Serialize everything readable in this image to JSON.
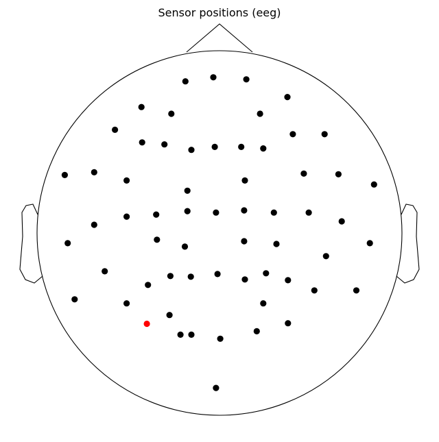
{
  "title": "Sensor positions (eeg)",
  "colors": {
    "outline": "#000000",
    "sensor": "#000000",
    "highlight": "#ff0000",
    "background": "#ffffff"
  },
  "chart_data": {
    "type": "scatter",
    "title": "Sensor positions (eeg)",
    "xlabel": "",
    "ylabel": "",
    "grid": false,
    "x_range": [
      -1,
      1
    ],
    "y_range": [
      -1,
      1
    ],
    "highlight_index": 60,
    "sensors": [
      {
        "x": -0.187,
        "y": 0.832
      },
      {
        "x": -0.034,
        "y": 0.854
      },
      {
        "x": 0.147,
        "y": 0.843
      },
      {
        "x": 0.372,
        "y": 0.746
      },
      {
        "x": -0.428,
        "y": 0.691
      },
      {
        "x": -0.264,
        "y": 0.654
      },
      {
        "x": 0.222,
        "y": 0.654
      },
      {
        "x": -0.573,
        "y": 0.566
      },
      {
        "x": 0.402,
        "y": 0.542
      },
      {
        "x": 0.576,
        "y": 0.542
      },
      {
        "x": -0.424,
        "y": 0.497
      },
      {
        "x": -0.302,
        "y": 0.486
      },
      {
        "x": -0.154,
        "y": 0.456
      },
      {
        "x": -0.026,
        "y": 0.472
      },
      {
        "x": 0.119,
        "y": 0.472
      },
      {
        "x": 0.24,
        "y": 0.464
      },
      {
        "x": -0.848,
        "y": 0.318
      },
      {
        "x": -0.687,
        "y": 0.333
      },
      {
        "x": -0.509,
        "y": 0.288
      },
      {
        "x": 0.139,
        "y": 0.288
      },
      {
        "x": 0.462,
        "y": 0.326
      },
      {
        "x": 0.652,
        "y": 0.322
      },
      {
        "x": 0.847,
        "y": 0.266
      },
      {
        "x": -0.176,
        "y": 0.232
      },
      {
        "x": -0.176,
        "y": 0.12
      },
      {
        "x": -0.509,
        "y": 0.09
      },
      {
        "x": -0.347,
        "y": 0.101
      },
      {
        "x": -0.019,
        "y": 0.112
      },
      {
        "x": 0.135,
        "y": 0.124
      },
      {
        "x": 0.298,
        "y": 0.112
      },
      {
        "x": 0.489,
        "y": 0.112
      },
      {
        "x": 0.67,
        "y": 0.064
      },
      {
        "x": -0.687,
        "y": 0.045
      },
      {
        "x": -0.832,
        "y": -0.056
      },
      {
        "x": -0.343,
        "y": -0.037
      },
      {
        "x": -0.19,
        "y": -0.075
      },
      {
        "x": 0.135,
        "y": -0.045
      },
      {
        "x": 0.312,
        "y": -0.06
      },
      {
        "x": 0.824,
        "y": -0.056
      },
      {
        "x": 0.584,
        "y": -0.127
      },
      {
        "x": -0.629,
        "y": -0.21
      },
      {
        "x": -0.269,
        "y": -0.236
      },
      {
        "x": -0.157,
        "y": -0.24
      },
      {
        "x": -0.011,
        "y": -0.225
      },
      {
        "x": 0.139,
        "y": -0.255
      },
      {
        "x": 0.255,
        "y": -0.221
      },
      {
        "x": 0.375,
        "y": -0.259
      },
      {
        "x": -0.392,
        "y": -0.285
      },
      {
        "x": 0.52,
        "y": -0.315
      },
      {
        "x": 0.75,
        "y": -0.315
      },
      {
        "x": -0.794,
        "y": -0.364
      },
      {
        "x": -0.509,
        "y": -0.386
      },
      {
        "x": 0.24,
        "y": -0.386
      },
      {
        "x": -0.274,
        "y": -0.45
      },
      {
        "x": 0.375,
        "y": -0.495
      },
      {
        "x": -0.214,
        "y": -0.558
      },
      {
        "x": 0.004,
        "y": -0.58
      },
      {
        "x": 0.204,
        "y": -0.539
      },
      {
        "x": -0.019,
        "y": -0.85
      },
      {
        "x": -0.154,
        "y": -0.558
      },
      {
        "x": -0.398,
        "y": -0.498
      }
    ]
  }
}
